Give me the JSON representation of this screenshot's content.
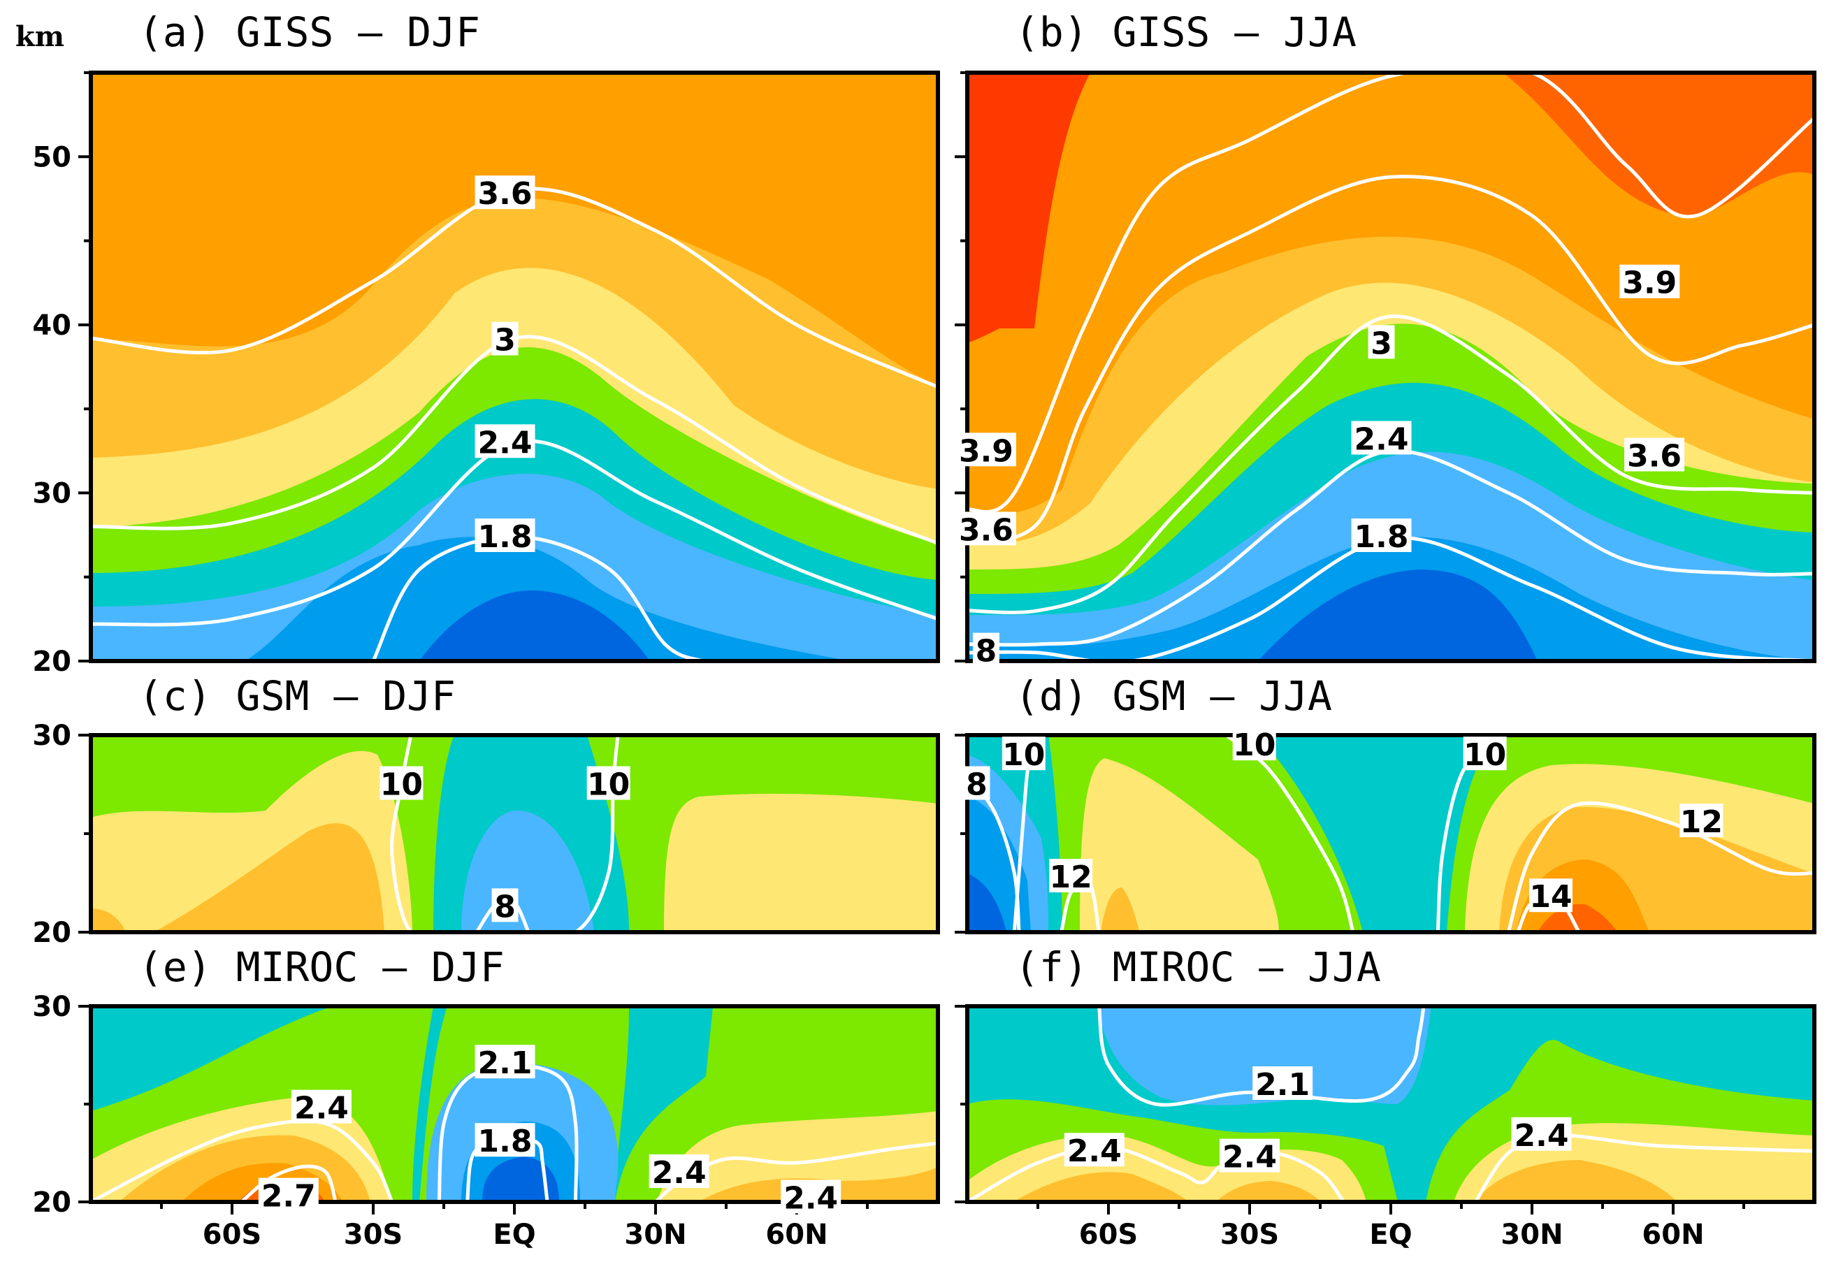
{
  "chart_data": [
    {
      "id": "a",
      "type": "heatmap",
      "title": "(a) GISS – DJF",
      "ylabel": "km",
      "ylim": [
        20,
        55
      ],
      "xlim": [
        -90,
        90
      ],
      "y_ticks": [
        "20",
        "30",
        "40",
        "50"
      ],
      "x_ticks": [],
      "levels": [
        1.5,
        1.8,
        2.1,
        2.4,
        2.7,
        3.0,
        3.3,
        3.6
      ],
      "contour_labels": [
        {
          "text": "3.6",
          "lat": -2,
          "km": 47.8
        },
        {
          "text": "3",
          "lat": -2,
          "km": 39.1
        },
        {
          "text": "2.4",
          "lat": -2,
          "km": 33.0
        },
        {
          "text": "1.8",
          "lat": -2,
          "km": 27.4
        }
      ],
      "isolines": [
        {
          "value": 3.6,
          "lat": [
            -90,
            -60,
            -30,
            0,
            30,
            60,
            90
          ],
          "km": [
            39.2,
            38.5,
            42.6,
            48.0,
            45.6,
            40.0,
            36.3
          ]
        },
        {
          "value": 3.0,
          "lat": [
            -90,
            -60,
            -30,
            0,
            30,
            60,
            90
          ],
          "km": [
            28.0,
            28.2,
            31.5,
            39.2,
            35.5,
            30.4,
            27.0
          ]
        },
        {
          "value": 2.4,
          "lat": [
            -90,
            -60,
            -30,
            0,
            30,
            60,
            90
          ],
          "km": [
            22.2,
            22.5,
            25.5,
            33.0,
            29.5,
            25.5,
            22.5
          ]
        },
        {
          "value": 1.8,
          "lat": [
            -30,
            -20,
            0,
            20,
            32,
            40
          ],
          "km": [
            20.0,
            25.5,
            27.4,
            25.5,
            21.0,
            20.0
          ]
        }
      ]
    },
    {
      "id": "b",
      "type": "heatmap",
      "title": "(b) GISS – JJA",
      "ylim": [
        20,
        55
      ],
      "xlim": [
        -90,
        90
      ],
      "y_ticks": [],
      "x_ticks": [],
      "levels": [
        1.5,
        1.8,
        2.1,
        2.4,
        2.7,
        3.0,
        3.3,
        3.6,
        3.9,
        4.2
      ],
      "contour_labels": [
        {
          "text": "3.9",
          "lat": 55,
          "km": 42.5
        },
        {
          "text": "3.6",
          "lat": 56,
          "km": 32.2
        },
        {
          "text": "3",
          "lat": -2,
          "km": 38.9
        },
        {
          "text": "2.4",
          "lat": -2,
          "km": 33.2
        },
        {
          "text": "1.8",
          "lat": -2,
          "km": 27.4
        },
        {
          "text": "3.9",
          "lat": -86,
          "km": 32.5
        },
        {
          "text": "3.6",
          "lat": -86,
          "km": 27.8
        },
        {
          "text": "8",
          "lat": -86,
          "km": 20.6
        }
      ],
      "isolines": [
        {
          "value": 3.9,
          "lat": [
            -90,
            -80,
            -65,
            -50,
            -30,
            0,
            30,
            50,
            65,
            90
          ],
          "km": [
            29.0,
            30.0,
            40.0,
            48.0,
            51.0,
            54.8,
            55.0,
            49.5,
            46.5,
            52.3
          ]
        },
        {
          "value": 3.6,
          "lat": [
            -90,
            -75,
            -65,
            -50,
            -30,
            0,
            30,
            55,
            75,
            90
          ],
          "km": [
            27.0,
            28.2,
            35.0,
            42.0,
            45.5,
            48.8,
            46.5,
            38.2,
            38.8,
            40.0
          ]
        },
        {
          "value": 3.0,
          "lat": [
            -90,
            -75,
            -60,
            -45,
            -20,
            0,
            25,
            50,
            75,
            90
          ],
          "km": [
            23.0,
            23.0,
            24.5,
            29.0,
            36.0,
            40.5,
            37.0,
            31.0,
            30.2,
            30.0
          ]
        },
        {
          "value": 2.4,
          "lat": [
            -90,
            -75,
            -60,
            -40,
            -20,
            0,
            25,
            50,
            75,
            90
          ],
          "km": [
            21.0,
            21.0,
            21.5,
            24.5,
            29.0,
            32.5,
            30.0,
            26.0,
            25.2,
            25.2
          ]
        },
        {
          "value": 1.8,
          "lat": [
            -90,
            -75,
            -55,
            -30,
            0,
            30,
            60,
            90
          ],
          "km": [
            20.5,
            20.5,
            20.0,
            22.5,
            27.3,
            24.5,
            20.8,
            20.0
          ]
        }
      ]
    },
    {
      "id": "c",
      "type": "heatmap",
      "title": "(c) GSM – DJF",
      "ylim": [
        20,
        30
      ],
      "xlim": [
        -90,
        90
      ],
      "y_ticks": [
        "20",
        "30"
      ],
      "x_ticks": [],
      "levels": [
        6,
        8,
        10,
        12,
        14
      ],
      "contour_labels": [
        {
          "text": "10",
          "lat": -24,
          "km": 27.5
        },
        {
          "text": "10",
          "lat": 20,
          "km": 27.5
        },
        {
          "text": "8",
          "lat": -2,
          "km": 21.3
        }
      ],
      "isolines": [
        {
          "value": 10,
          "lat": [
            -22,
            -24,
            -26,
            -22,
            -12,
            0,
            13,
            20,
            21,
            22
          ],
          "km": [
            30.0,
            27.5,
            24.0,
            20.0,
            20.0,
            20.0,
            20.0,
            23.0,
            27.5,
            30.0
          ]
        },
        {
          "value": 8,
          "lat": [
            -8,
            -4,
            0,
            3
          ],
          "km": [
            20.0,
            21.4,
            21.5,
            20.0
          ]
        }
      ]
    },
    {
      "id": "d",
      "type": "heatmap",
      "title": "(d) GSM – JJA",
      "ylim": [
        20,
        30
      ],
      "xlim": [
        -90,
        90
      ],
      "y_ticks": [],
      "x_ticks": [],
      "levels": [
        6,
        8,
        10,
        12,
        14
      ],
      "contour_labels": [
        {
          "text": "10",
          "lat": -78,
          "km": 29.0
        },
        {
          "text": "10",
          "lat": -29,
          "km": 29.5
        },
        {
          "text": "10",
          "lat": 20,
          "km": 29.0
        },
        {
          "text": "12",
          "lat": 66,
          "km": 25.6
        },
        {
          "text": "14",
          "lat": 34,
          "km": 21.8
        },
        {
          "text": "12",
          "lat": -68,
          "km": 22.8
        },
        {
          "text": "8",
          "lat": -88,
          "km": 27.5
        }
      ],
      "isolines": [
        {
          "value": 10,
          "lat": [
            -75,
            -77,
            -78,
            -79,
            -80
          ],
          "km": [
            30.0,
            28.5,
            26.0,
            23.0,
            20.0
          ]
        },
        {
          "value": 10,
          "lat": [
            -35,
            -25,
            -12,
            -8
          ],
          "km": [
            30.0,
            28.0,
            23.0,
            20.0
          ]
        },
        {
          "value": 10,
          "lat": [
            22,
            15,
            11,
            10
          ],
          "km": [
            30.0,
            28.0,
            24.0,
            20.0
          ]
        },
        {
          "value": 12,
          "lat": [
            25,
            30,
            40,
            60,
            80,
            90
          ],
          "km": [
            20.0,
            24.0,
            26.5,
            25.5,
            23.2,
            23.0
          ]
        },
        {
          "value": 14,
          "lat": [
            27,
            30,
            36,
            40
          ],
          "km": [
            20.0,
            21.5,
            21.5,
            20.0
          ]
        },
        {
          "value": 12,
          "lat": [
            -70,
            -68,
            -64,
            -62
          ],
          "km": [
            20.0,
            22.0,
            22.5,
            20.0
          ]
        },
        {
          "value": 8,
          "lat": [
            -90,
            -84,
            -80,
            -79
          ],
          "km": [
            28.0,
            26.0,
            23.0,
            20.0
          ]
        }
      ]
    },
    {
      "id": "e",
      "type": "heatmap",
      "title": "(e) MIROC – DJF",
      "ylim": [
        20,
        30
      ],
      "xlim": [
        -90,
        90
      ],
      "y_ticks": [
        "20",
        "30"
      ],
      "x_ticks": [
        "60S",
        "30S",
        "EQ",
        "30N",
        "60N"
      ],
      "levels": [
        1.5,
        1.8,
        2.1,
        2.4,
        2.7,
        3.0
      ],
      "contour_labels": [
        {
          "text": "2.1",
          "lat": -2,
          "km": 27.1
        },
        {
          "text": "1.8",
          "lat": -2,
          "km": 23.1
        },
        {
          "text": "2.4",
          "lat": -41,
          "km": 24.8
        },
        {
          "text": "2.7",
          "lat": -48,
          "km": 20.3
        },
        {
          "text": "2.4",
          "lat": 35,
          "km": 21.5
        },
        {
          "text": "2.4",
          "lat": 63,
          "km": 20.2
        }
      ],
      "isolines": [
        {
          "value": 2.1,
          "lat": [
            -16,
            -15,
            -10,
            0,
            10,
            13,
            13
          ],
          "km": [
            20.0,
            24.0,
            26.3,
            27.0,
            26.3,
            24.0,
            20.0
          ]
        },
        {
          "value": 1.8,
          "lat": [
            -10,
            -9,
            -5,
            0,
            5,
            6,
            7
          ],
          "km": [
            20.0,
            22.3,
            23.2,
            23.3,
            23.0,
            22.0,
            20.0
          ]
        },
        {
          "value": 2.4,
          "lat": [
            -90,
            -70,
            -55,
            -40,
            -30,
            -26
          ],
          "km": [
            20.0,
            22.5,
            23.8,
            24.0,
            22.0,
            20.0
          ]
        },
        {
          "value": 2.4,
          "lat": [
            30,
            35,
            45,
            60,
            80,
            90
          ],
          "km": [
            20.0,
            21.0,
            22.2,
            22.0,
            22.7,
            23.0
          ]
        },
        {
          "value": 2.7,
          "lat": [
            -58,
            -52,
            -45,
            -40,
            -38
          ],
          "km": [
            20.0,
            21.2,
            21.8,
            21.5,
            20.0
          ]
        }
      ]
    },
    {
      "id": "f",
      "type": "heatmap",
      "title": "(f) MIROC – JJA",
      "ylim": [
        20,
        30
      ],
      "xlim": [
        -90,
        90
      ],
      "y_ticks": [],
      "x_ticks": [
        "60S",
        "30S",
        "EQ",
        "30N",
        "60N"
      ],
      "levels": [
        1.8,
        2.1,
        2.4,
        2.7
      ],
      "contour_labels": [
        {
          "text": "2.1",
          "lat": -23,
          "km": 26.0
        },
        {
          "text": "2.4",
          "lat": -63,
          "km": 22.6
        },
        {
          "text": "2.4",
          "lat": -30,
          "km": 22.3
        },
        {
          "text": "2.4",
          "lat": 32,
          "km": 23.4
        }
      ],
      "isolines": [
        {
          "value": 2.1,
          "lat": [
            -62,
            -60,
            -50,
            -30,
            -5,
            4,
            6,
            7
          ],
          "km": [
            30.0,
            27.0,
            25.0,
            25.6,
            25.2,
            26.8,
            28.5,
            30.0
          ]
        },
        {
          "value": 2.4,
          "lat": [
            -90,
            -75,
            -60,
            -45,
            -40,
            -35,
            -25,
            -15,
            -10
          ],
          "km": [
            20.0,
            22.0,
            22.8,
            21.5,
            21.0,
            22.0,
            22.5,
            21.5,
            20.0
          ]
        },
        {
          "value": 2.4,
          "lat": [
            18,
            25,
            35,
            55,
            75,
            90
          ],
          "km": [
            20.0,
            22.5,
            23.4,
            22.9,
            22.7,
            22.6
          ]
        }
      ]
    }
  ],
  "colors": {
    "c2": "#0066e0",
    "c3": "#009ced",
    "c4": "#4ab6ff",
    "c5": "#00c9c9",
    "c6": "#7de800",
    "c7": "#ffe773",
    "c8": "#ffbf2e",
    "c9": "#ff9f00",
    "c10": "#ff6400",
    "c11": "#ff3a00",
    "contour": "#ffffff",
    "frame": "#000000"
  }
}
